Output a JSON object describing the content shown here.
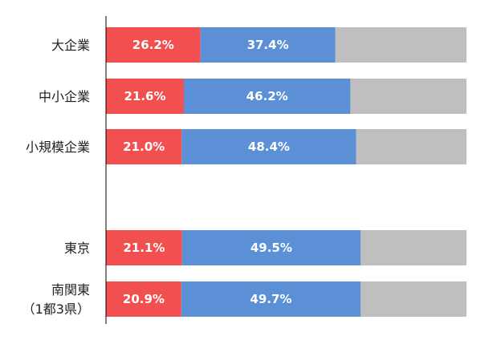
{
  "chart_data": {
    "type": "bar",
    "orientation": "horizontal",
    "stacked": true,
    "xlim": [
      0,
      100
    ],
    "grid": false,
    "legend": "none",
    "categories": [
      [
        "大企業"
      ],
      [
        "中小企業"
      ],
      [
        "小規模企業"
      ],
      [
        "東京"
      ],
      [
        "南関東",
        "（1都3県）"
      ]
    ],
    "series": [
      {
        "color": "#f25050",
        "values": [
          26.2,
          21.6,
          21.0,
          21.1,
          20.9
        ],
        "labels": [
          "26.2%",
          "21.6%",
          "21.0%",
          "21.1%",
          "20.9%"
        ]
      },
      {
        "color": "#5b8fd6",
        "values": [
          37.4,
          46.2,
          48.4,
          49.5,
          49.7
        ],
        "labels": [
          "37.4%",
          "46.2%",
          "48.4%",
          "49.5%",
          "49.7%"
        ]
      },
      {
        "color": "#bfbfbf",
        "values": [
          36.4,
          32.2,
          30.6,
          29.4,
          29.4
        ]
      }
    ]
  }
}
